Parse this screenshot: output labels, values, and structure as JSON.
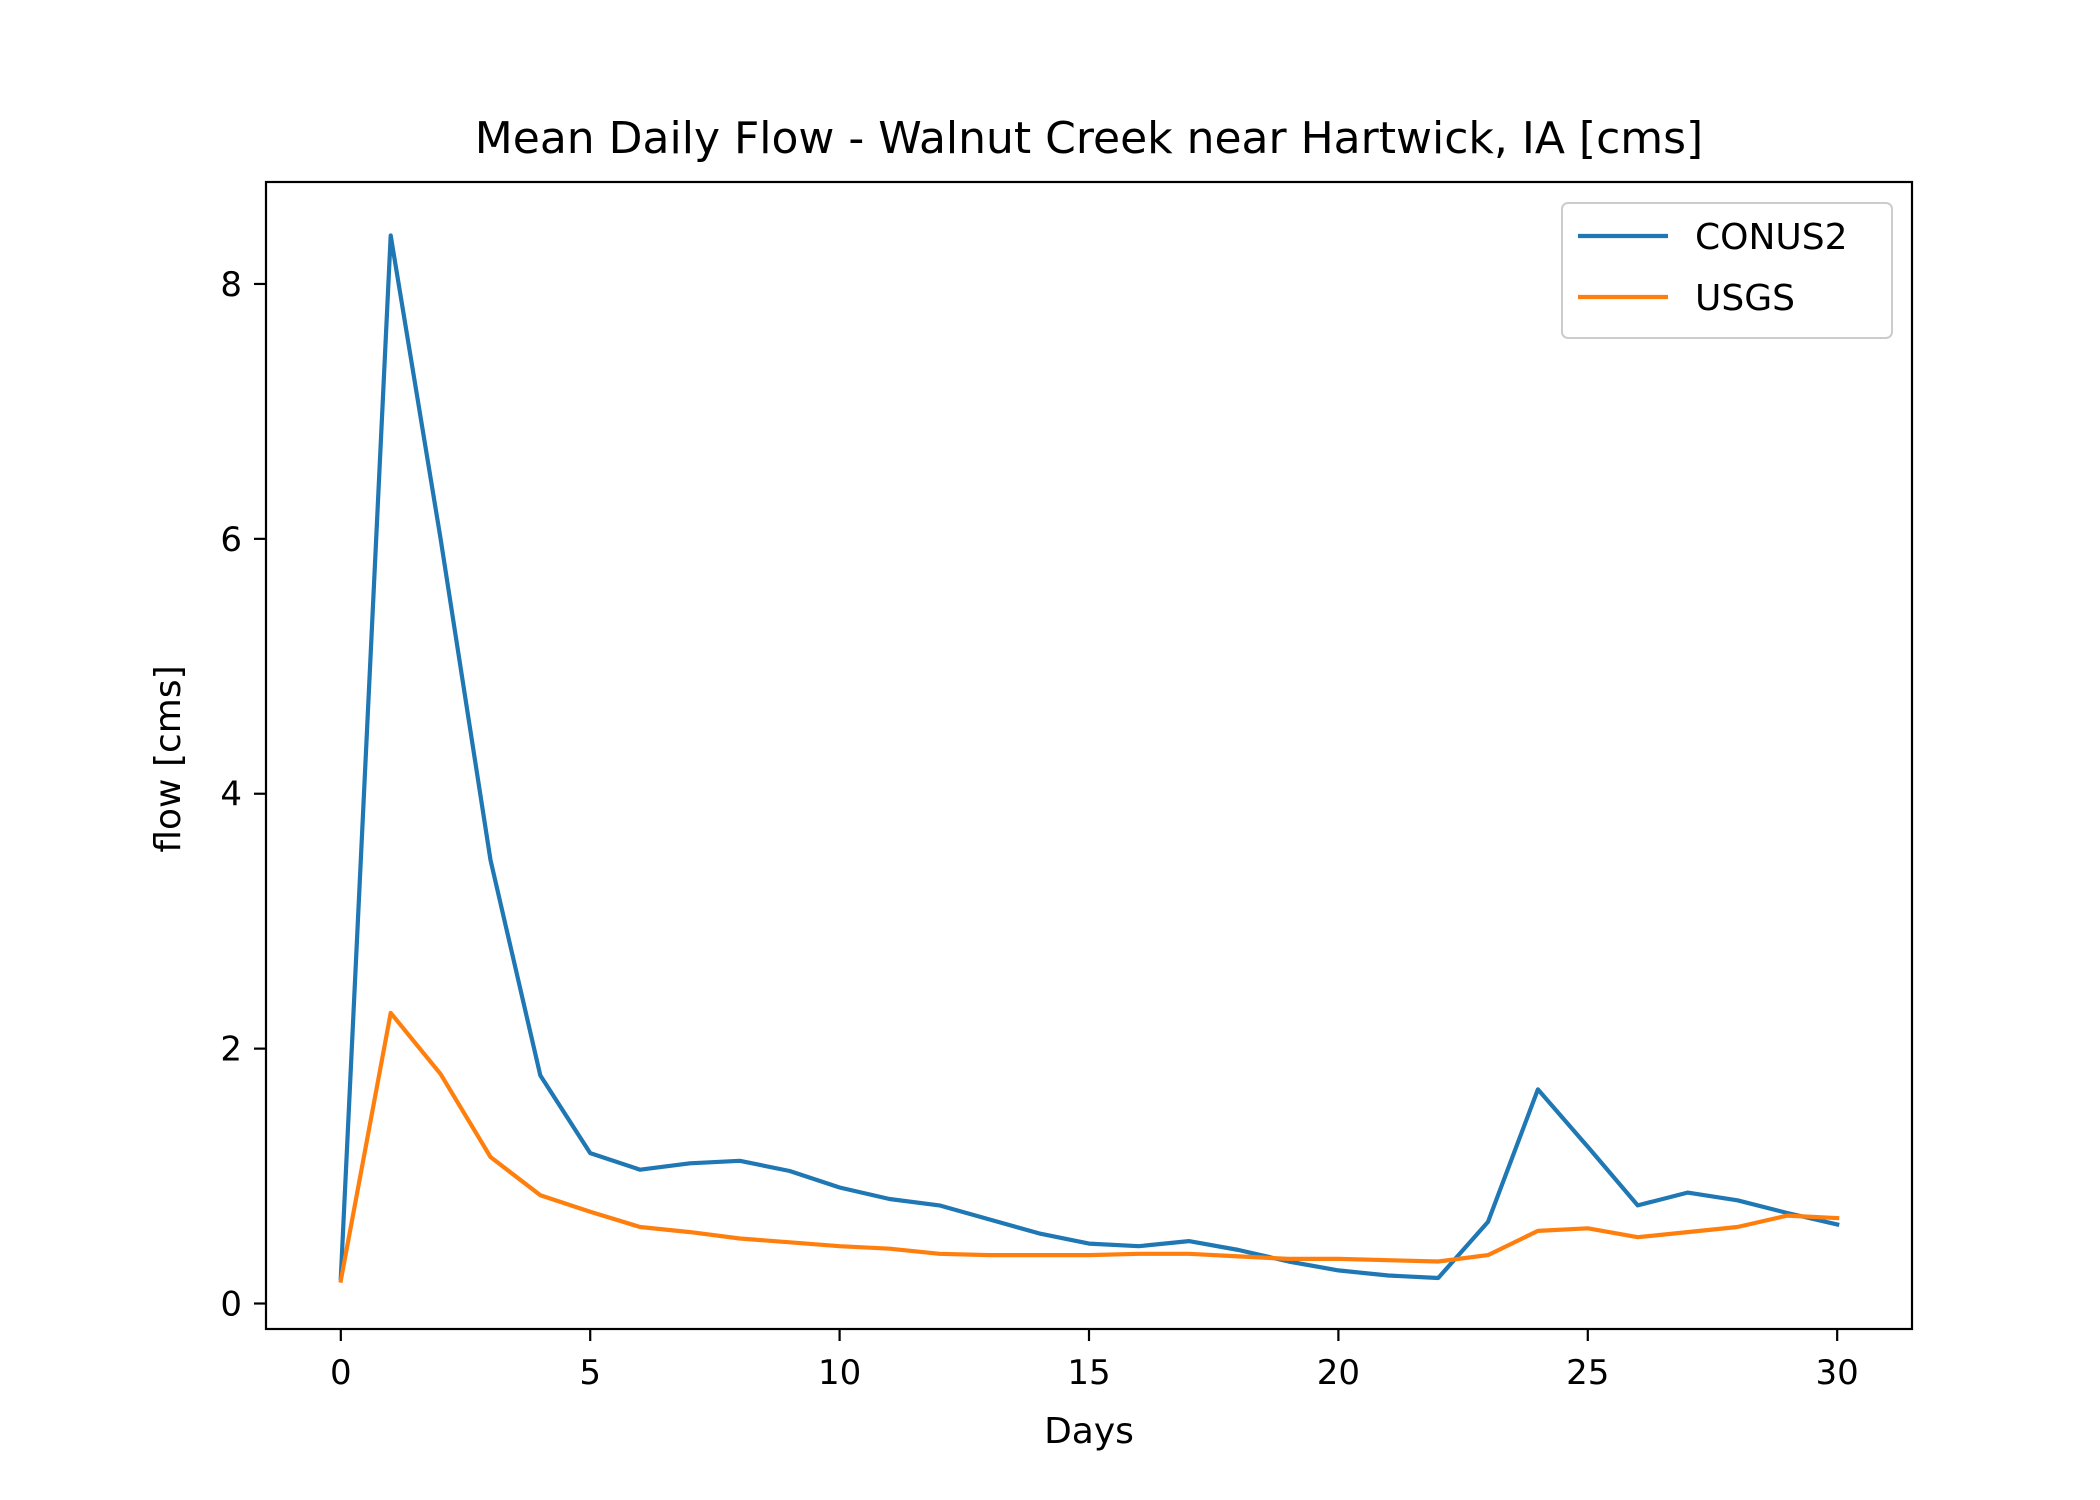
{
  "chart_data": {
    "type": "line",
    "title": "Mean Daily Flow - Walnut Creek near Hartwick, IA [cms]",
    "xlabel": "Days",
    "ylabel": "flow [cms]",
    "xlim": [
      -1.5,
      31.5
    ],
    "ylim": [
      -0.2,
      8.8
    ],
    "xticks": [
      0,
      5,
      10,
      15,
      20,
      25,
      30
    ],
    "yticks": [
      0,
      2,
      4,
      6,
      8
    ],
    "grid": false,
    "legend_position": "top-right",
    "x": [
      0,
      1,
      2,
      3,
      4,
      5,
      6,
      7,
      8,
      9,
      10,
      11,
      12,
      13,
      14,
      15,
      16,
      17,
      18,
      19,
      20,
      21,
      22,
      23,
      24,
      25,
      26,
      27,
      28,
      29,
      30
    ],
    "series": [
      {
        "name": "CONUS2",
        "color": "#1f77b4",
        "values": [
          0.2,
          8.38,
          6.0,
          3.48,
          1.79,
          1.18,
          1.05,
          1.1,
          1.12,
          1.04,
          0.91,
          0.82,
          0.77,
          0.66,
          0.55,
          0.47,
          0.45,
          0.49,
          0.42,
          0.33,
          0.26,
          0.22,
          0.2,
          0.64,
          1.68,
          1.23,
          0.77,
          0.87,
          0.81,
          0.71,
          0.62
        ]
      },
      {
        "name": "USGS",
        "color": "#ff7f0e",
        "values": [
          0.18,
          2.28,
          1.8,
          1.15,
          0.85,
          0.72,
          0.6,
          0.56,
          0.51,
          0.48,
          0.45,
          0.43,
          0.39,
          0.38,
          0.38,
          0.38,
          0.39,
          0.39,
          0.37,
          0.35,
          0.35,
          0.34,
          0.33,
          0.38,
          0.57,
          0.59,
          0.52,
          0.56,
          0.6,
          0.69,
          0.67
        ]
      }
    ]
  }
}
